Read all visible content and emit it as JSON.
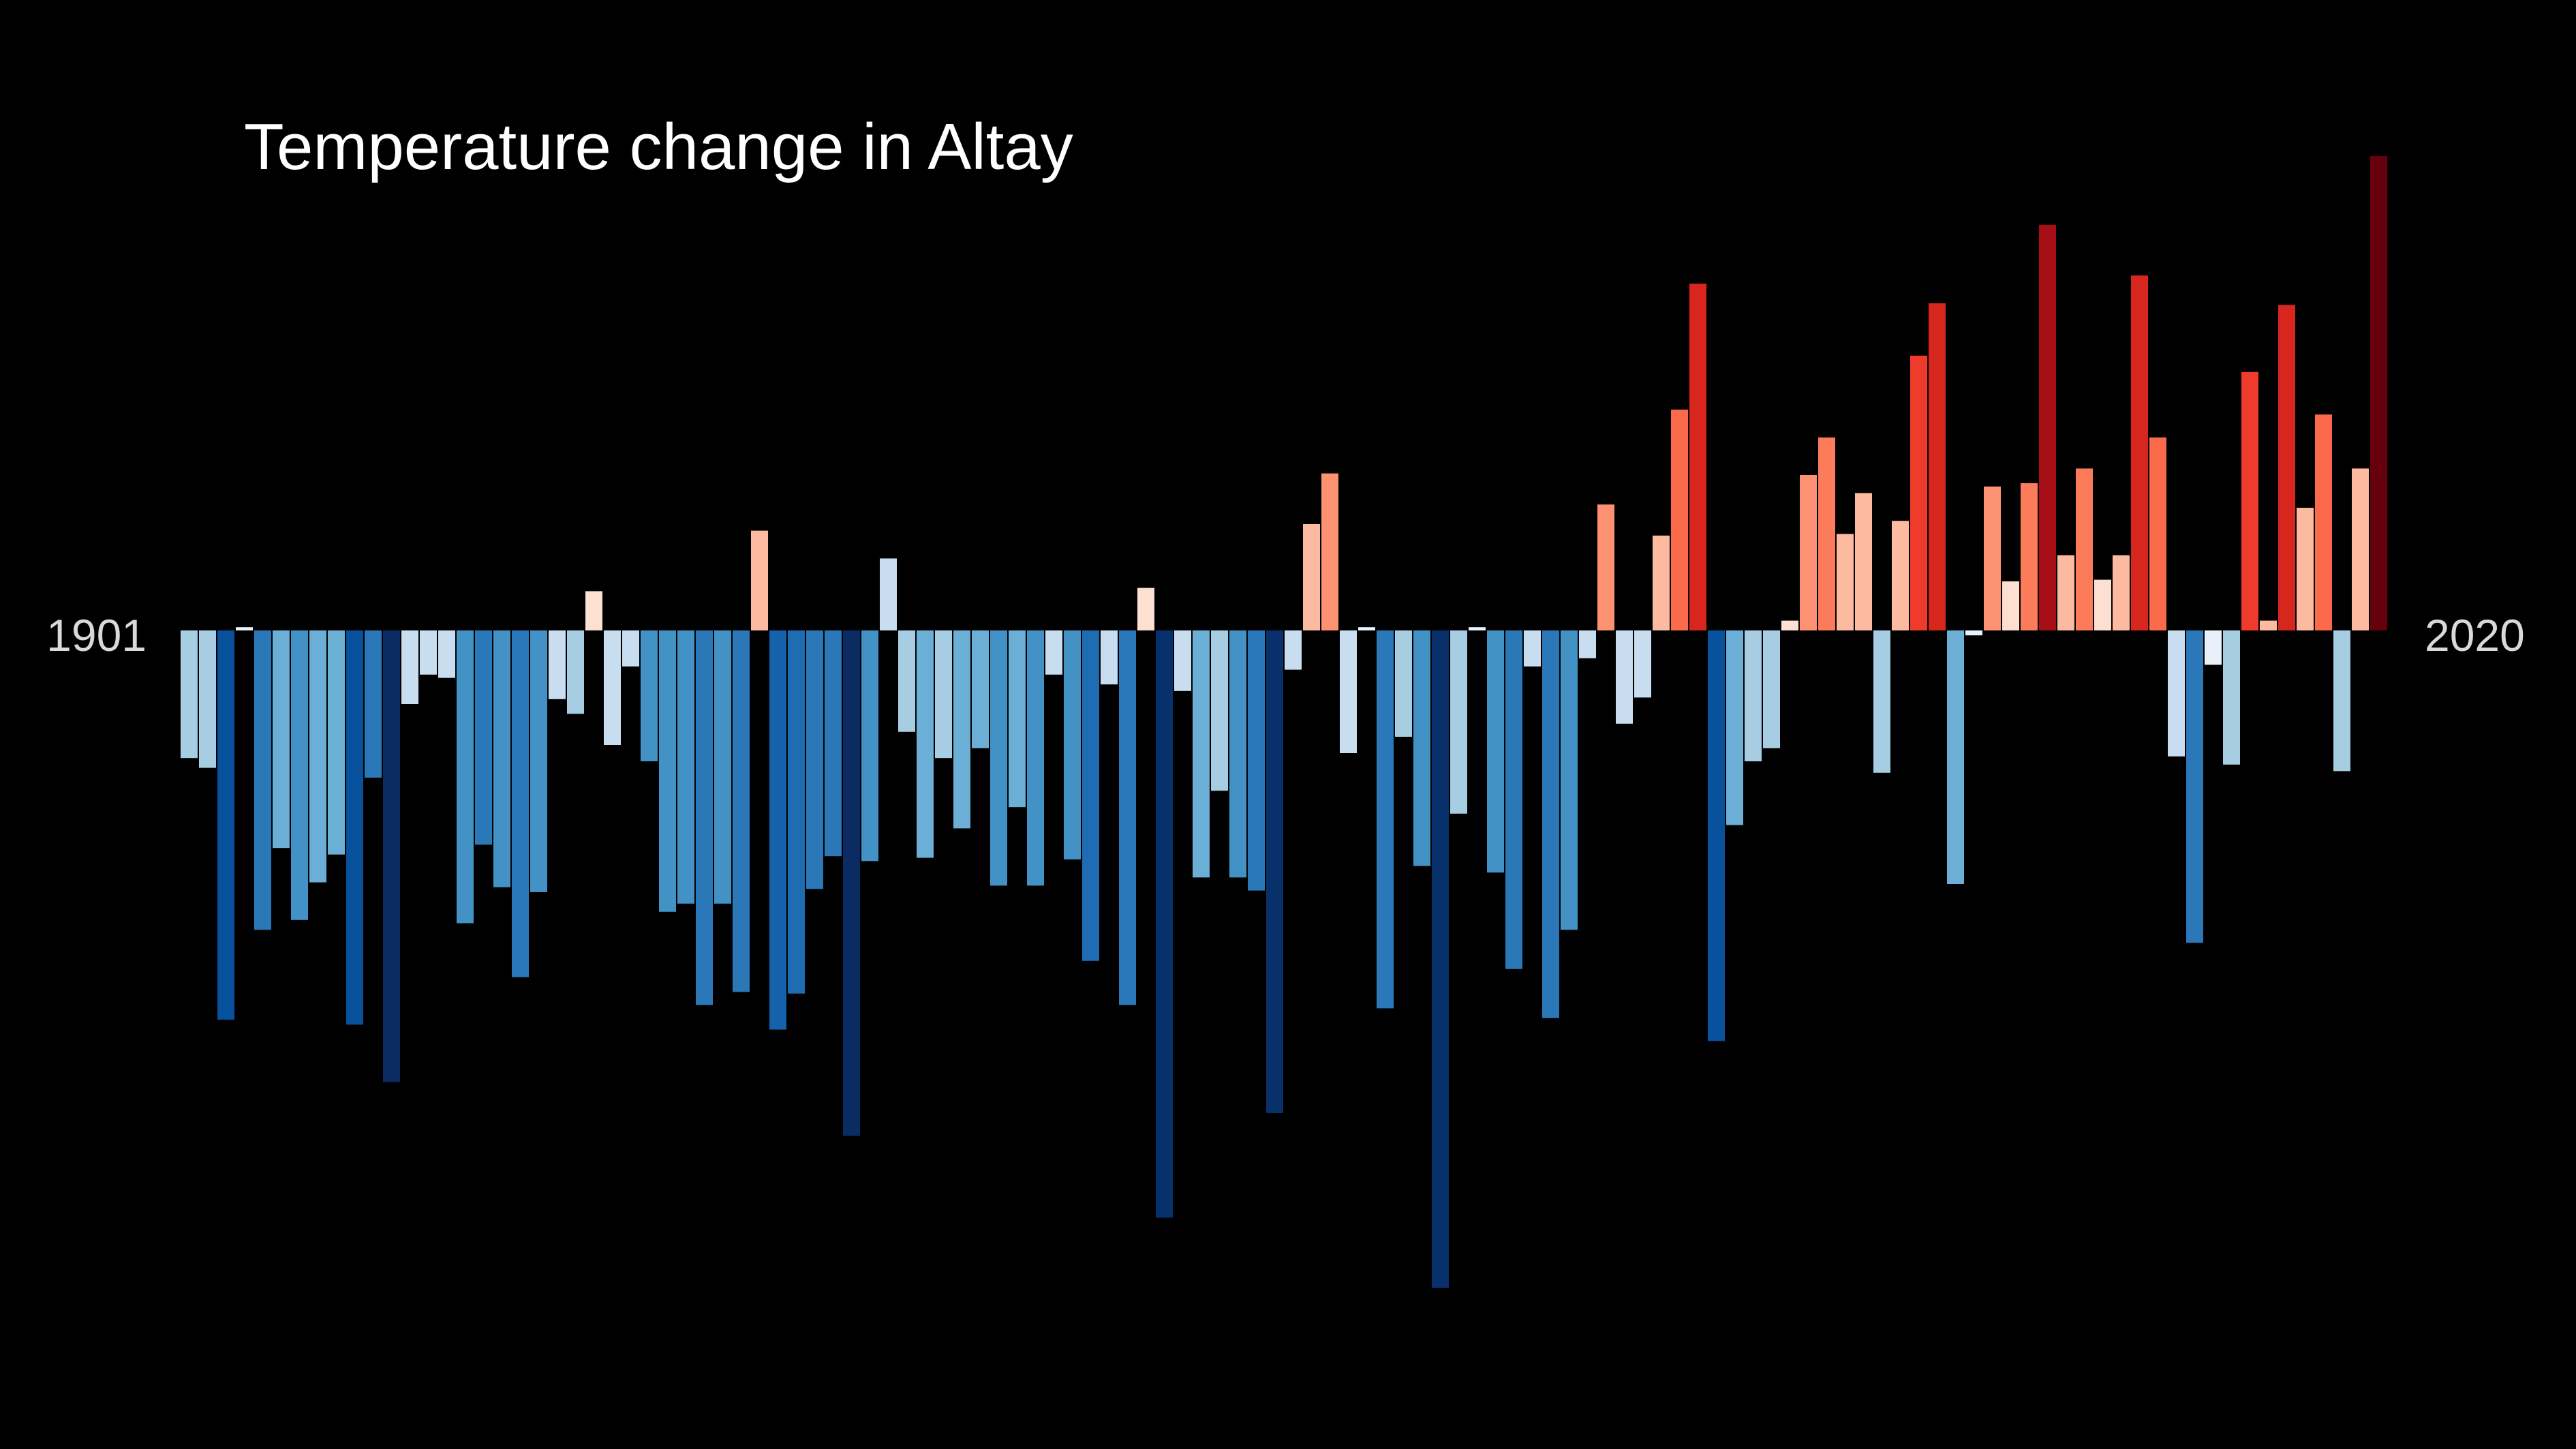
{
  "chart_data": {
    "type": "bar",
    "title": "Temperature change in Altay",
    "start_label": "1901",
    "end_label": "2020",
    "x_start": 1901,
    "x_end": 2020,
    "y_unit": "relative anomaly",
    "ylim": [
      -402,
      290
    ],
    "values": [
      -78,
      -84,
      -238,
      2,
      -183,
      -133,
      -177,
      -154,
      -137,
      -241,
      -90,
      -276,
      -45,
      -27,
      -29,
      -179,
      -131,
      -157,
      -212,
      -160,
      -42,
      -51,
      24,
      -70,
      -22,
      -80,
      -172,
      -167,
      -229,
      -167,
      -221,
      61,
      -244,
      -222,
      -158,
      -138,
      -309,
      -141,
      44,
      -62,
      -139,
      -78,
      -121,
      -72,
      -156,
      -108,
      -156,
      -27,
      -140,
      -202,
      -33,
      -229,
      26,
      -359,
      -37,
      -151,
      -98,
      -151,
      -159,
      -295,
      -24,
      65,
      96,
      -75,
      2,
      -231,
      -65,
      -144,
      -402,
      -112,
      2,
      -148,
      -207,
      -22,
      -237,
      -183,
      -17,
      77,
      -57,
      -41,
      58,
      135,
      212,
      -251,
      -119,
      -80,
      -72,
      6,
      95,
      118,
      59,
      84,
      -87,
      67,
      168,
      200,
      -155,
      -3,
      88,
      30,
      90,
      248,
      46,
      99,
      31,
      46,
      217,
      118,
      -77,
      -191,
      -21,
      -82,
      158,
      6,
      199,
      75,
      132,
      -86,
      99,
      290
    ],
    "colors": [
      "#a6cde2",
      "#a6cde2",
      "#08519c",
      "#e8f1fa",
      "#2a78b8",
      "#6baed6",
      "#4292c6",
      "#6baed6",
      "#6baed6",
      "#08519c",
      "#2a78b8",
      "#0b2c63",
      "#c8ddf0",
      "#c8ddf0",
      "#c8ddf0",
      "#4292c6",
      "#2a78b8",
      "#4292c6",
      "#2a78b8",
      "#4292c6",
      "#c8ddf0",
      "#a6cde2",
      "#fee0d2",
      "#c8ddf0",
      "#c8ddf0",
      "#4292c6",
      "#4292c6",
      "#4292c6",
      "#2a78b8",
      "#4292c6",
      "#2a78b8",
      "#fcbba1",
      "#1461ac",
      "#1e6cb2",
      "#2a78b8",
      "#2a78b8",
      "#0b2c63",
      "#4292c6",
      "#c8ddf0",
      "#a6cde2",
      "#6baed6",
      "#a6cde2",
      "#6baed6",
      "#6baed6",
      "#4292c6",
      "#6baed6",
      "#4292c6",
      "#c8ddf0",
      "#4292c6",
      "#1e6cb2",
      "#c8ddf0",
      "#2a78b8",
      "#fee0d2",
      "#08306b",
      "#c8ddf0",
      "#6baed6",
      "#a6cde2",
      "#4292c6",
      "#2a78b8",
      "#08306b",
      "#c8ddf0",
      "#fcbba1",
      "#fc9272",
      "#c8ddf0",
      "#e8f1fa",
      "#2a78b8",
      "#a6cde2",
      "#4292c6",
      "#08306b",
      "#a6cde2",
      "#e8f1fa",
      "#4292c6",
      "#2a78b8",
      "#c8ddf0",
      "#2a78b8",
      "#4292c6",
      "#c8ddf0",
      "#fc9272",
      "#c8ddf0",
      "#c8ddf0",
      "#fcbba1",
      "#fb6a4a",
      "#d7261e",
      "#08519c",
      "#6baed6",
      "#a6cde2",
      "#a6cde2",
      "#fee0d2",
      "#fc9272",
      "#fb7b5b",
      "#fcbba1",
      "#fcbba1",
      "#a6cde2",
      "#fcbba1",
      "#ef3b2c",
      "#d7261e",
      "#6baed6",
      "#e8f1fa",
      "#fc9272",
      "#fee0d2",
      "#fb7b5b",
      "#a50f15",
      "#fcbba1",
      "#fb7b5b",
      "#fee0d2",
      "#fcbba1",
      "#d7261e",
      "#fb6a4a",
      "#c8ddf0",
      "#2a78b8",
      "#e8f1fa",
      "#a6cde2",
      "#ef3b2c",
      "#fcbba1",
      "#d7261e",
      "#fcbba1",
      "#fb6a4a",
      "#a6cde2",
      "#fcbba1",
      "#67000d"
    ]
  }
}
